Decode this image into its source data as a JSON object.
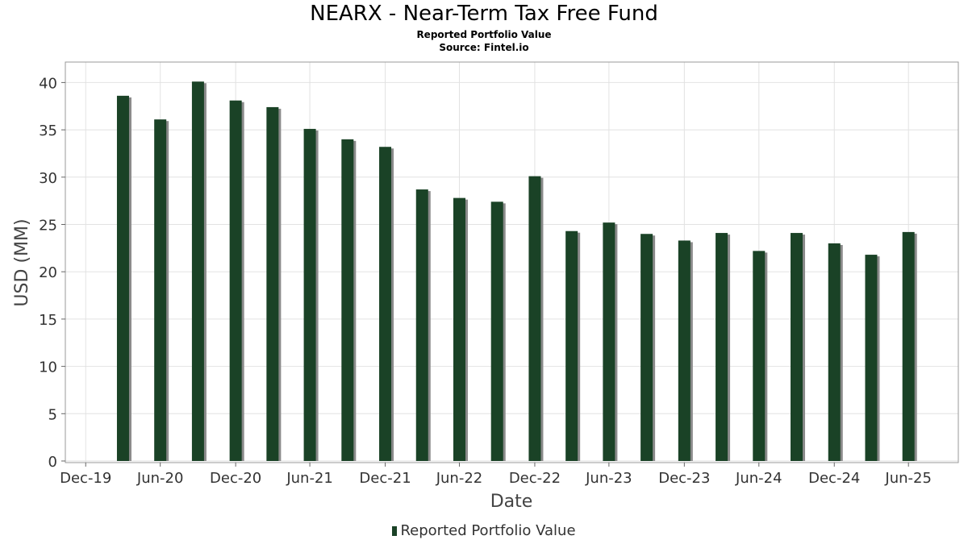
{
  "header": {
    "title": "NEARX - Near-Term Tax Free Fund",
    "subtitle": "Reported Portfolio Value",
    "source": "Source: Fintel.io"
  },
  "legend": {
    "label": "Reported Portfolio Value"
  },
  "chart_data": {
    "type": "bar",
    "title": "NEARX - Near-Term Tax Free Fund",
    "subtitle": "Reported Portfolio Value",
    "xlabel": "Date",
    "ylabel": "USD (MM)",
    "ylim": [
      0,
      42
    ],
    "yticks": [
      0,
      5,
      10,
      15,
      20,
      25,
      30,
      35,
      40
    ],
    "grid": true,
    "legend_position": "bottom",
    "bar_color": "#1a4226",
    "shadow_color": "#8a8a8a",
    "xticks": [
      "Dec-19",
      "Jun-20",
      "Dec-20",
      "Jun-21",
      "Dec-21",
      "Jun-22",
      "Dec-22",
      "Jun-23",
      "Dec-23",
      "Jun-24",
      "Dec-24",
      "Jun-25"
    ],
    "x_range": [
      "2019-12-01",
      "2025-10-10"
    ],
    "series": [
      {
        "name": "Reported Portfolio Value",
        "x": [
          "2020-03-31",
          "2020-06-30",
          "2020-09-30",
          "2020-12-31",
          "2021-03-31",
          "2021-06-30",
          "2021-09-30",
          "2021-12-31",
          "2022-03-31",
          "2022-06-30",
          "2022-09-30",
          "2022-12-31",
          "2023-03-31",
          "2023-06-30",
          "2023-09-30",
          "2023-12-31",
          "2024-03-31",
          "2024-06-30",
          "2024-09-30",
          "2024-12-31",
          "2025-03-31",
          "2025-06-30"
        ],
        "values": [
          38.6,
          36.1,
          40.1,
          38.1,
          37.4,
          35.1,
          34.0,
          33.2,
          28.7,
          27.8,
          27.4,
          30.1,
          24.3,
          25.2,
          24.0,
          23.3,
          24.1,
          22.2,
          24.1,
          23.0,
          21.8,
          24.2
        ]
      }
    ]
  }
}
